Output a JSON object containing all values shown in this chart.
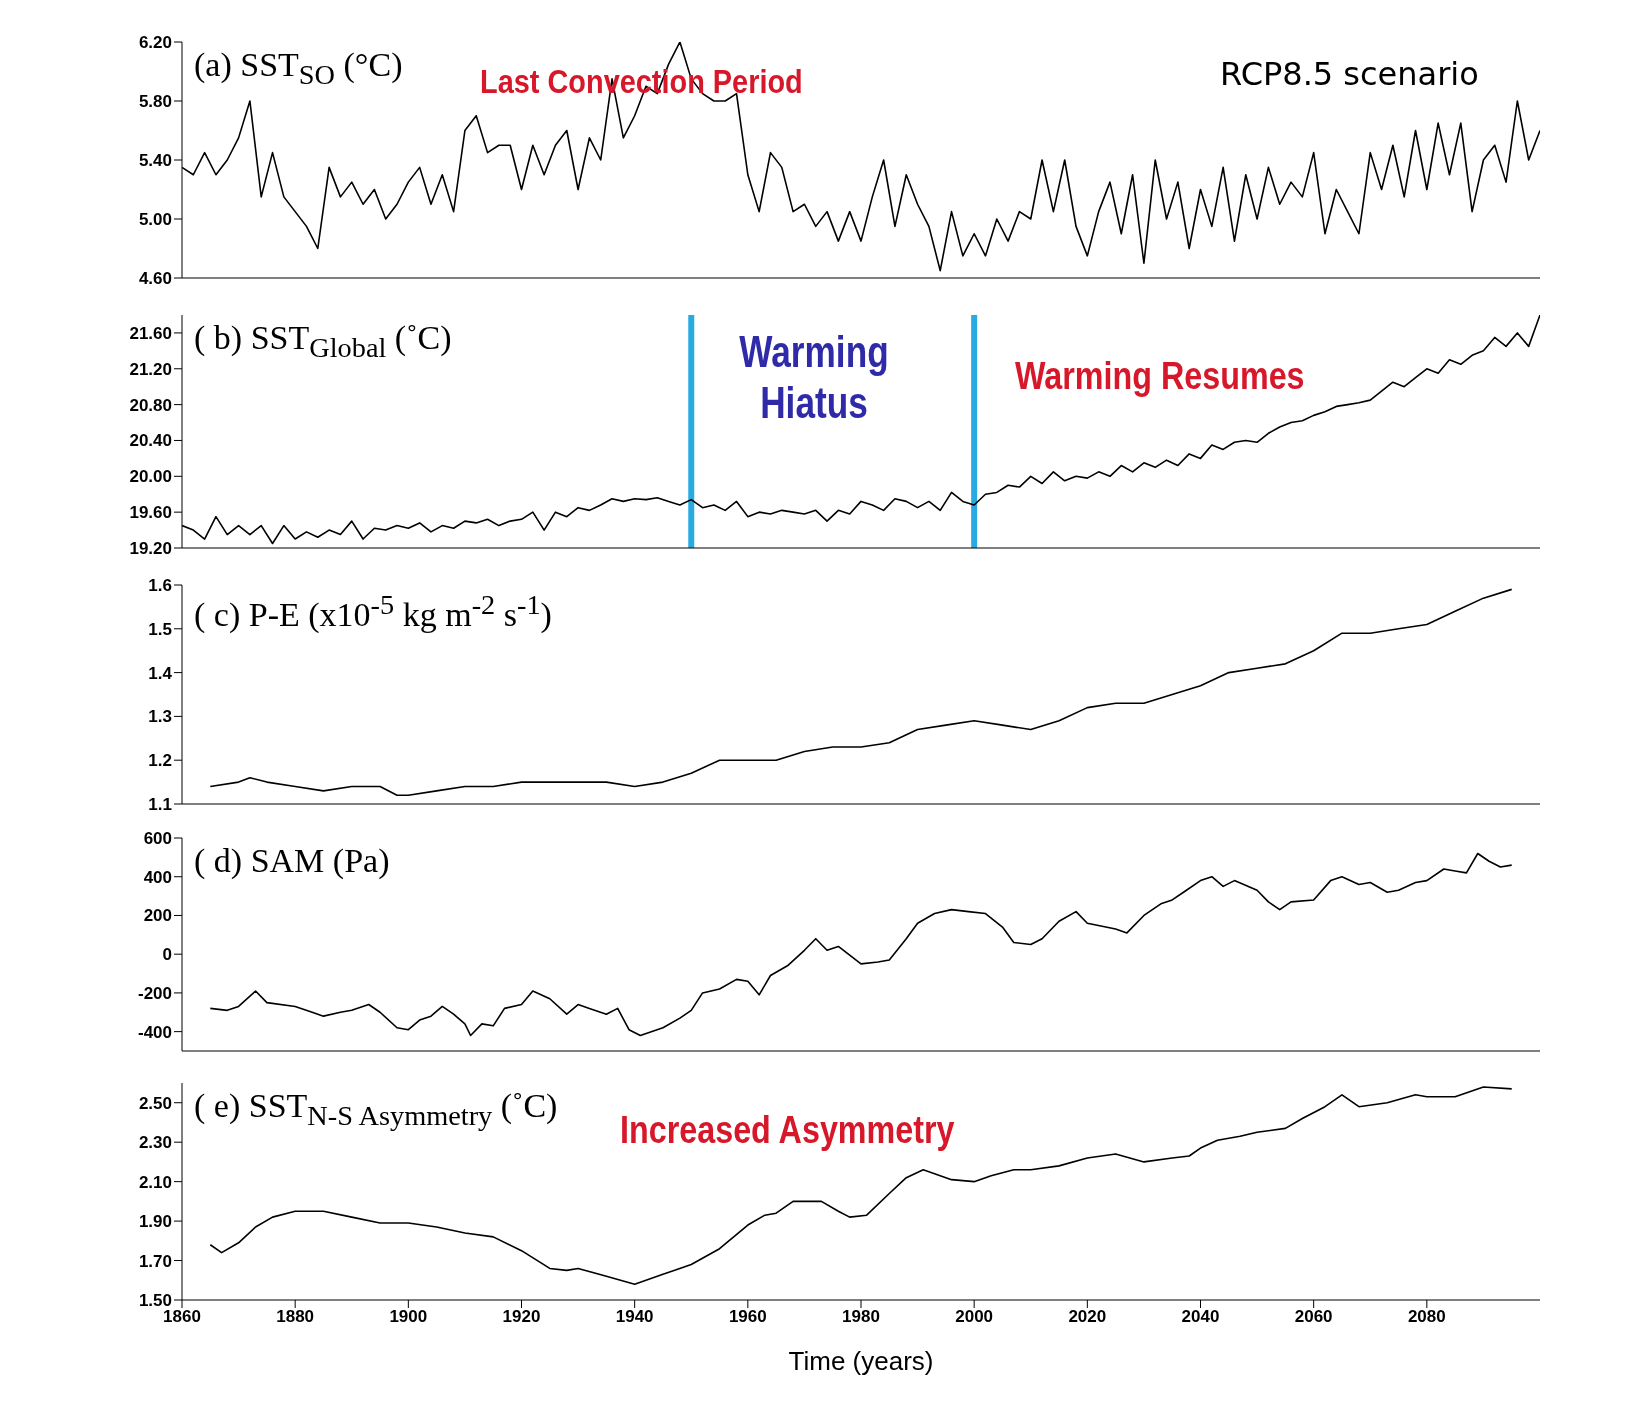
{
  "chart_data": [
    {
      "type": "line",
      "title": "(a) SST$_{SO}$ (°C)",
      "annotations": [
        "Last Convection Period",
        "RCP8.5 scenario"
      ],
      "xlim": [
        1860,
        2100
      ],
      "xticks": [
        1860,
        1880,
        1900,
        1920,
        1940,
        1960,
        1980,
        2000,
        2020,
        2040,
        2060,
        2080
      ],
      "ylim": [
        4.6,
        6.2
      ],
      "yticks": [
        {
          "value": 4.6,
          "label": "4.60"
        },
        {
          "value": 5.0,
          "label": "5.00"
        },
        {
          "value": 5.4,
          "label": "5.40"
        },
        {
          "value": 5.8,
          "label": "5.80"
        },
        {
          "value": 6.2,
          "label": "6.20"
        }
      ],
      "tick_labels": "y",
      "series": [
        {
          "color": "#000000",
          "x": [
            1860,
            1862,
            1864,
            1866,
            1868,
            1870,
            1872,
            1874,
            1876,
            1878,
            1880,
            1882,
            1884,
            1886,
            1888,
            1890,
            1892,
            1894,
            1896,
            1898,
            1900,
            1902,
            1904,
            1906,
            1908,
            1910,
            1912,
            1914,
            1916,
            1918,
            1920,
            1922,
            1924,
            1926,
            1928,
            1930,
            1932,
            1934,
            1936,
            1938,
            1940,
            1942,
            1944,
            1946,
            1948,
            1950,
            1952,
            1954,
            1956,
            1958,
            1960,
            1962,
            1964,
            1966,
            1968,
            1970,
            1972,
            1974,
            1976,
            1978,
            1980,
            1982,
            1984,
            1986,
            1988,
            1990,
            1992,
            1994,
            1996,
            1998,
            2000,
            2002,
            2004,
            2006,
            2008,
            2010,
            2012,
            2014,
            2016,
            2018,
            2020,
            2022,
            2024,
            2026,
            2028,
            2030,
            2032,
            2034,
            2036,
            2038,
            2040,
            2042,
            2044,
            2046,
            2048,
            2050,
            2052,
            2054,
            2056,
            2058,
            2060,
            2062,
            2064,
            2066,
            2068,
            2070,
            2072,
            2074,
            2076,
            2078,
            2080,
            2082,
            2084,
            2086,
            2088,
            2090,
            2092,
            2094,
            2096,
            2098,
            2100
          ],
          "values": [
            5.35,
            5.3,
            5.45,
            5.3,
            5.4,
            5.55,
            5.8,
            5.15,
            5.45,
            5.15,
            5.05,
            4.95,
            4.8,
            5.35,
            5.15,
            5.25,
            5.1,
            5.2,
            5.0,
            5.1,
            5.25,
            5.35,
            5.1,
            5.3,
            5.05,
            5.6,
            5.7,
            5.45,
            5.5,
            5.5,
            5.2,
            5.5,
            5.3,
            5.5,
            5.6,
            5.2,
            5.55,
            5.4,
            5.95,
            5.55,
            5.7,
            5.9,
            5.85,
            6.05,
            6.2,
            5.95,
            5.85,
            5.8,
            5.8,
            5.85,
            5.3,
            5.05,
            5.45,
            5.35,
            5.05,
            5.1,
            4.95,
            5.05,
            4.85,
            5.05,
            4.85,
            5.15,
            5.4,
            4.95,
            5.3,
            5.1,
            4.95,
            4.65,
            5.05,
            4.75,
            4.9,
            4.75,
            5.0,
            4.85,
            5.05,
            5.0,
            5.4,
            5.05,
            5.4,
            4.95,
            4.75,
            5.05,
            5.25,
            4.9,
            5.3,
            4.7,
            5.4,
            5.0,
            5.25,
            4.8,
            5.2,
            4.95,
            5.35,
            4.85,
            5.3,
            5.0,
            5.35,
            5.1,
            5.25,
            5.15,
            5.45,
            4.9,
            5.2,
            5.05,
            4.9,
            5.45,
            5.2,
            5.5,
            5.15,
            5.6,
            5.2,
            5.65,
            5.3,
            5.65,
            5.05,
            5.4,
            5.5,
            5.25,
            5.8,
            5.4,
            5.6
          ]
        }
      ]
    },
    {
      "type": "line",
      "title": "( b) SST$_{Global}$ (˚C)",
      "annotations": [
        "Warming Hiatus",
        "Warming Resumes"
      ],
      "xlim": [
        1860,
        2100
      ],
      "xticks": [
        1860,
        1880,
        1900,
        1920,
        1940,
        1960,
        1980,
        2000,
        2020,
        2040,
        2060,
        2080
      ],
      "ylim": [
        19.2,
        21.8
      ],
      "yticks": [
        {
          "value": 19.2,
          "label": "19.20"
        },
        {
          "value": 19.6,
          "label": "19.60"
        },
        {
          "value": 20.0,
          "label": "20.00"
        },
        {
          "value": 20.4,
          "label": "20.40"
        },
        {
          "value": 20.8,
          "label": "20.80"
        },
        {
          "value": 21.2,
          "label": "21.20"
        },
        {
          "value": 21.6,
          "label": "21.60"
        }
      ],
      "tick_labels": "y",
      "ref_lines": [
        {
          "axis": "x",
          "value": 1950,
          "color": "#29abe2"
        },
        {
          "axis": "x",
          "value": 2000,
          "color": "#29abe2"
        }
      ],
      "series": [
        {
          "color": "#000000",
          "x": [
            1860,
            1862,
            1864,
            1866,
            1868,
            1870,
            1872,
            1874,
            1876,
            1878,
            1880,
            1882,
            1884,
            1886,
            1888,
            1890,
            1892,
            1894,
            1896,
            1898,
            1900,
            1902,
            1904,
            1906,
            1908,
            1910,
            1912,
            1914,
            1916,
            1918,
            1920,
            1922,
            1924,
            1926,
            1928,
            1930,
            1932,
            1934,
            1936,
            1938,
            1940,
            1942,
            1944,
            1946,
            1948,
            1950,
            1952,
            1954,
            1956,
            1958,
            1960,
            1962,
            1964,
            1966,
            1968,
            1970,
            1972,
            1974,
            1976,
            1978,
            1980,
            1982,
            1984,
            1986,
            1988,
            1990,
            1992,
            1994,
            1996,
            1998,
            2000,
            2002,
            2004,
            2006,
            2008,
            2010,
            2012,
            2014,
            2016,
            2018,
            2020,
            2022,
            2024,
            2026,
            2028,
            2030,
            2032,
            2034,
            2036,
            2038,
            2040,
            2042,
            2044,
            2046,
            2048,
            2050,
            2052,
            2054,
            2056,
            2058,
            2060,
            2062,
            2064,
            2066,
            2068,
            2070,
            2072,
            2074,
            2076,
            2078,
            2080,
            2082,
            2084,
            2086,
            2088,
            2090,
            2092,
            2094,
            2096,
            2098,
            2100
          ],
          "values": [
            19.45,
            19.4,
            19.3,
            19.55,
            19.35,
            19.45,
            19.35,
            19.45,
            19.25,
            19.45,
            19.3,
            19.38,
            19.32,
            19.4,
            19.35,
            19.5,
            19.3,
            19.42,
            19.4,
            19.45,
            19.42,
            19.48,
            19.38,
            19.45,
            19.42,
            19.5,
            19.48,
            19.52,
            19.45,
            19.5,
            19.52,
            19.6,
            19.4,
            19.6,
            19.55,
            19.65,
            19.62,
            19.68,
            19.75,
            19.72,
            19.75,
            19.74,
            19.76,
            19.72,
            19.68,
            19.74,
            19.65,
            19.68,
            19.62,
            19.72,
            19.55,
            19.6,
            19.58,
            19.62,
            19.6,
            19.58,
            19.62,
            19.5,
            19.62,
            19.58,
            19.72,
            19.68,
            19.62,
            19.75,
            19.72,
            19.65,
            19.72,
            19.62,
            19.82,
            19.72,
            19.68,
            19.8,
            19.82,
            19.9,
            19.88,
            20.0,
            19.92,
            20.05,
            19.95,
            20.0,
            19.98,
            20.05,
            20.0,
            20.12,
            20.05,
            20.15,
            20.1,
            20.18,
            20.12,
            20.25,
            20.2,
            20.35,
            20.3,
            20.38,
            20.4,
            20.38,
            20.48,
            20.55,
            20.6,
            20.62,
            20.68,
            20.72,
            20.78,
            20.8,
            20.82,
            20.85,
            20.95,
            21.05,
            21.0,
            21.1,
            21.2,
            21.15,
            21.3,
            21.25,
            21.35,
            21.4,
            21.55,
            21.45,
            21.6,
            21.45,
            21.8
          ]
        }
      ]
    },
    {
      "type": "line",
      "title": "( c) P-E (x10$^{-5}$ kg m$^{-2}$ s$^{-1}$)",
      "xlim": [
        1860,
        2100
      ],
      "xticks": [
        1860,
        1880,
        1900,
        1920,
        1940,
        1960,
        1980,
        2000,
        2020,
        2040,
        2060,
        2080
      ],
      "ylim": [
        1.1,
        1.6
      ],
      "yticks": [
        1.1,
        1.2,
        1.3,
        1.4,
        1.5,
        1.6
      ],
      "tick_labels": "y",
      "series": [
        {
          "color": "#000000",
          "x": [
            1865,
            1870,
            1872,
            1875,
            1880,
            1885,
            1890,
            1895,
            1898,
            1900,
            1905,
            1910,
            1915,
            1920,
            1925,
            1930,
            1935,
            1940,
            1945,
            1950,
            1955,
            1960,
            1965,
            1970,
            1975,
            1980,
            1985,
            1990,
            1995,
            2000,
            2005,
            2010,
            2015,
            2020,
            2025,
            2030,
            2035,
            2040,
            2045,
            2050,
            2055,
            2060,
            2065,
            2070,
            2075,
            2080,
            2085,
            2090,
            2095
          ],
          "values": [
            1.14,
            1.15,
            1.16,
            1.15,
            1.14,
            1.13,
            1.14,
            1.14,
            1.12,
            1.12,
            1.13,
            1.14,
            1.14,
            1.15,
            1.15,
            1.15,
            1.15,
            1.14,
            1.15,
            1.17,
            1.2,
            1.2,
            1.2,
            1.22,
            1.23,
            1.23,
            1.24,
            1.27,
            1.28,
            1.29,
            1.28,
            1.27,
            1.29,
            1.32,
            1.33,
            1.33,
            1.35,
            1.37,
            1.4,
            1.41,
            1.42,
            1.45,
            1.49,
            1.49,
            1.5,
            1.51,
            1.54,
            1.57,
            1.59
          ]
        }
      ]
    },
    {
      "type": "line",
      "title": "( d) SAM (Pa)",
      "xlim": [
        1860,
        2100
      ],
      "xticks": [
        1860,
        1880,
        1900,
        1920,
        1940,
        1960,
        1980,
        2000,
        2020,
        2040,
        2060,
        2080
      ],
      "ylim": [
        -500,
        600
      ],
      "yticks": [
        -400,
        -200,
        0,
        200,
        400,
        600
      ],
      "tick_labels": "y",
      "series": [
        {
          "color": "#000000",
          "x": [
            1865,
            1868,
            1870,
            1873,
            1875,
            1880,
            1883,
            1885,
            1888,
            1890,
            1893,
            1895,
            1898,
            1900,
            1902,
            1904,
            1906,
            1908,
            1910,
            1911,
            1913,
            1915,
            1917,
            1920,
            1922,
            1925,
            1928,
            1930,
            1932,
            1935,
            1937,
            1939,
            1941,
            1945,
            1948,
            1950,
            1952,
            1955,
            1958,
            1960,
            1962,
            1964,
            1967,
            1970,
            1972,
            1974,
            1976,
            1980,
            1983,
            1985,
            1988,
            1990,
            1993,
            1996,
            1999,
            2002,
            2005,
            2007,
            2010,
            2012,
            2015,
            2018,
            2020,
            2025,
            2027,
            2030,
            2033,
            2035,
            2037,
            2040,
            2042,
            2044,
            2046,
            2050,
            2052,
            2054,
            2056,
            2060,
            2063,
            2065,
            2068,
            2070,
            2073,
            2075,
            2078,
            2080,
            2083,
            2085,
            2087,
            2089,
            2091,
            2093,
            2095
          ],
          "values": [
            -280,
            -290,
            -270,
            -190,
            -250,
            -270,
            -300,
            -320,
            -300,
            -290,
            -260,
            -300,
            -380,
            -390,
            -340,
            -320,
            -270,
            -310,
            -360,
            -420,
            -360,
            -370,
            -280,
            -260,
            -190,
            -230,
            -310,
            -260,
            -280,
            -310,
            -280,
            -390,
            -420,
            -380,
            -330,
            -290,
            -200,
            -180,
            -130,
            -140,
            -210,
            -110,
            -60,
            20,
            80,
            20,
            40,
            -50,
            -40,
            -30,
            80,
            160,
            210,
            230,
            220,
            210,
            140,
            60,
            50,
            80,
            170,
            220,
            160,
            130,
            110,
            200,
            260,
            280,
            320,
            380,
            400,
            350,
            380,
            330,
            270,
            230,
            270,
            280,
            380,
            400,
            360,
            370,
            320,
            330,
            370,
            380,
            440,
            430,
            420,
            520,
            480,
            450,
            460
          ]
        }
      ]
    },
    {
      "type": "line",
      "title": "( e) SST$_{N-S Asymmetry}$ (˚C)",
      "xlabel": "Time (years)",
      "annotations": [
        "Increased Asymmetry"
      ],
      "xlim": [
        1860,
        2100
      ],
      "xticks": [
        1860,
        1880,
        1900,
        1920,
        1940,
        1960,
        1980,
        2000,
        2020,
        2040,
        2060,
        2080
      ],
      "ylim": [
        1.5,
        2.6
      ],
      "yticks": [
        {
          "value": 1.5,
          "label": "1.50"
        },
        {
          "value": 1.7,
          "label": "1.70"
        },
        {
          "value": 1.9,
          "label": "1.90"
        },
        {
          "value": 2.1,
          "label": "2.10"
        },
        {
          "value": 2.3,
          "label": "2.30"
        },
        {
          "value": 2.5,
          "label": "2.50"
        }
      ],
      "series": [
        {
          "color": "#000000",
          "x": [
            1865,
            1867,
            1870,
            1873,
            1876,
            1880,
            1885,
            1890,
            1895,
            1900,
            1905,
            1910,
            1915,
            1920,
            1925,
            1928,
            1930,
            1935,
            1940,
            1945,
            1950,
            1955,
            1960,
            1963,
            1965,
            1968,
            1973,
            1976,
            1978,
            1981,
            1985,
            1988,
            1991,
            1996,
            2000,
            2003,
            2007,
            2010,
            2015,
            2020,
            2025,
            2030,
            2035,
            2038,
            2040,
            2043,
            2047,
            2050,
            2055,
            2058,
            2062,
            2065,
            2068,
            2073,
            2078,
            2080,
            2085,
            2090,
            2095
          ],
          "values": [
            1.78,
            1.74,
            1.79,
            1.87,
            1.92,
            1.95,
            1.95,
            1.92,
            1.89,
            1.89,
            1.87,
            1.84,
            1.82,
            1.75,
            1.66,
            1.65,
            1.66,
            1.62,
            1.58,
            1.63,
            1.68,
            1.76,
            1.88,
            1.93,
            1.94,
            2.0,
            2.0,
            1.95,
            1.92,
            1.93,
            2.04,
            2.12,
            2.16,
            2.11,
            2.1,
            2.13,
            2.16,
            2.16,
            2.18,
            2.22,
            2.24,
            2.2,
            2.22,
            2.23,
            2.27,
            2.31,
            2.33,
            2.35,
            2.37,
            2.42,
            2.48,
            2.54,
            2.48,
            2.5,
            2.54,
            2.53,
            2.53,
            2.58,
            2.57
          ]
        }
      ]
    }
  ]
}
